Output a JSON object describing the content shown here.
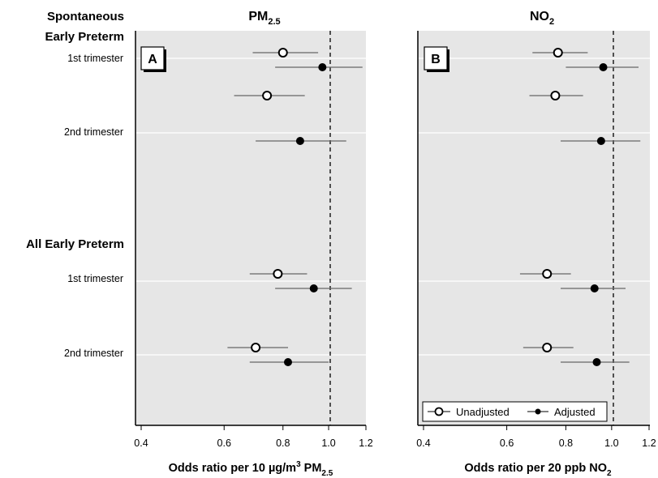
{
  "row_labels": {
    "group_spontaneous_line1": "Spontaneous",
    "group_spontaneous_line2": "Early Preterm",
    "group_all": "All Early Preterm",
    "first_trimester": "1st trimester",
    "second_trimester": "2nd trimester"
  },
  "panels": {
    "a": {
      "letter": "A",
      "title_main": "PM",
      "title_sub": "2.5",
      "xlabel_pre": "Odds ratio per 10 µg/m",
      "xlabel_sup": "3",
      "xlabel_mid": " PM",
      "xlabel_sub": "2.5"
    },
    "b": {
      "letter": "B",
      "title_main": "NO",
      "title_sub": "2",
      "xlabel_pre": "Odds ratio per 20 ppb NO",
      "xlabel_sub": "2"
    }
  },
  "legend": {
    "unadjusted": "Unadjusted",
    "adjusted": "Adjusted"
  },
  "colors": {
    "panel_bg": "#e6e6e6",
    "gridline": "#ffffff",
    "ci_line": "#666666",
    "marker": "#000000"
  },
  "chart_data": [
    {
      "type": "scatter",
      "panel": "A",
      "title": "PM2.5",
      "xlabel": "Odds ratio per 10 µg/m3 PM2.5",
      "x_scale": "log",
      "xlim": [
        0.4,
        1.2
      ],
      "x_ticks": [
        "0.4",
        "0.6",
        "0.8",
        "1.0",
        "1.2"
      ],
      "reference_line": 1.0,
      "rows": [
        {
          "group": "Spontaneous Early Preterm",
          "label": "1st trimester",
          "unadjusted": {
            "or": 0.8,
            "lo": 0.69,
            "hi": 0.95
          },
          "adjusted": {
            "or": 0.97,
            "lo": 0.77,
            "hi": 1.18
          }
        },
        {
          "group": "Spontaneous Early Preterm",
          "label": "2nd trimester",
          "unadjusted": {
            "or": 0.74,
            "lo": 0.63,
            "hi": 0.89
          },
          "adjusted": {
            "or": 0.87,
            "lo": 0.7,
            "hi": 1.09
          }
        },
        {
          "group": "All Early Preterm",
          "label": "1st trimester",
          "unadjusted": {
            "or": 0.78,
            "lo": 0.68,
            "hi": 0.9
          },
          "adjusted": {
            "or": 0.93,
            "lo": 0.77,
            "hi": 1.12
          }
        },
        {
          "group": "All Early Preterm",
          "label": "2nd trimester",
          "unadjusted": {
            "or": 0.7,
            "lo": 0.61,
            "hi": 0.82
          },
          "adjusted": {
            "or": 0.82,
            "lo": 0.68,
            "hi": 1.0
          }
        }
      ]
    },
    {
      "type": "scatter",
      "panel": "B",
      "title": "NO2",
      "xlabel": "Odds ratio per 20 ppb NO2",
      "x_scale": "log",
      "xlim": [
        0.4,
        1.2
      ],
      "x_ticks": [
        "0.4",
        "0.6",
        "0.8",
        "1.0",
        "1.2"
      ],
      "reference_line": 1.0,
      "rows": [
        {
          "group": "Spontaneous Early Preterm",
          "label": "1st trimester",
          "unadjusted": {
            "or": 0.77,
            "lo": 0.68,
            "hi": 0.89
          },
          "adjusted": {
            "or": 0.96,
            "lo": 0.8,
            "hi": 1.14
          }
        },
        {
          "group": "Spontaneous Early Preterm",
          "label": "2nd trimester",
          "unadjusted": {
            "or": 0.76,
            "lo": 0.67,
            "hi": 0.87
          },
          "adjusted": {
            "or": 0.95,
            "lo": 0.78,
            "hi": 1.15
          }
        },
        {
          "group": "All Early Preterm",
          "label": "1st trimester",
          "unadjusted": {
            "or": 0.73,
            "lo": 0.64,
            "hi": 0.82
          },
          "adjusted": {
            "or": 0.92,
            "lo": 0.78,
            "hi": 1.07
          }
        },
        {
          "group": "All Early Preterm",
          "label": "2nd trimester",
          "unadjusted": {
            "or": 0.73,
            "lo": 0.65,
            "hi": 0.83
          },
          "adjusted": {
            "or": 0.93,
            "lo": 0.78,
            "hi": 1.09
          }
        }
      ]
    }
  ]
}
